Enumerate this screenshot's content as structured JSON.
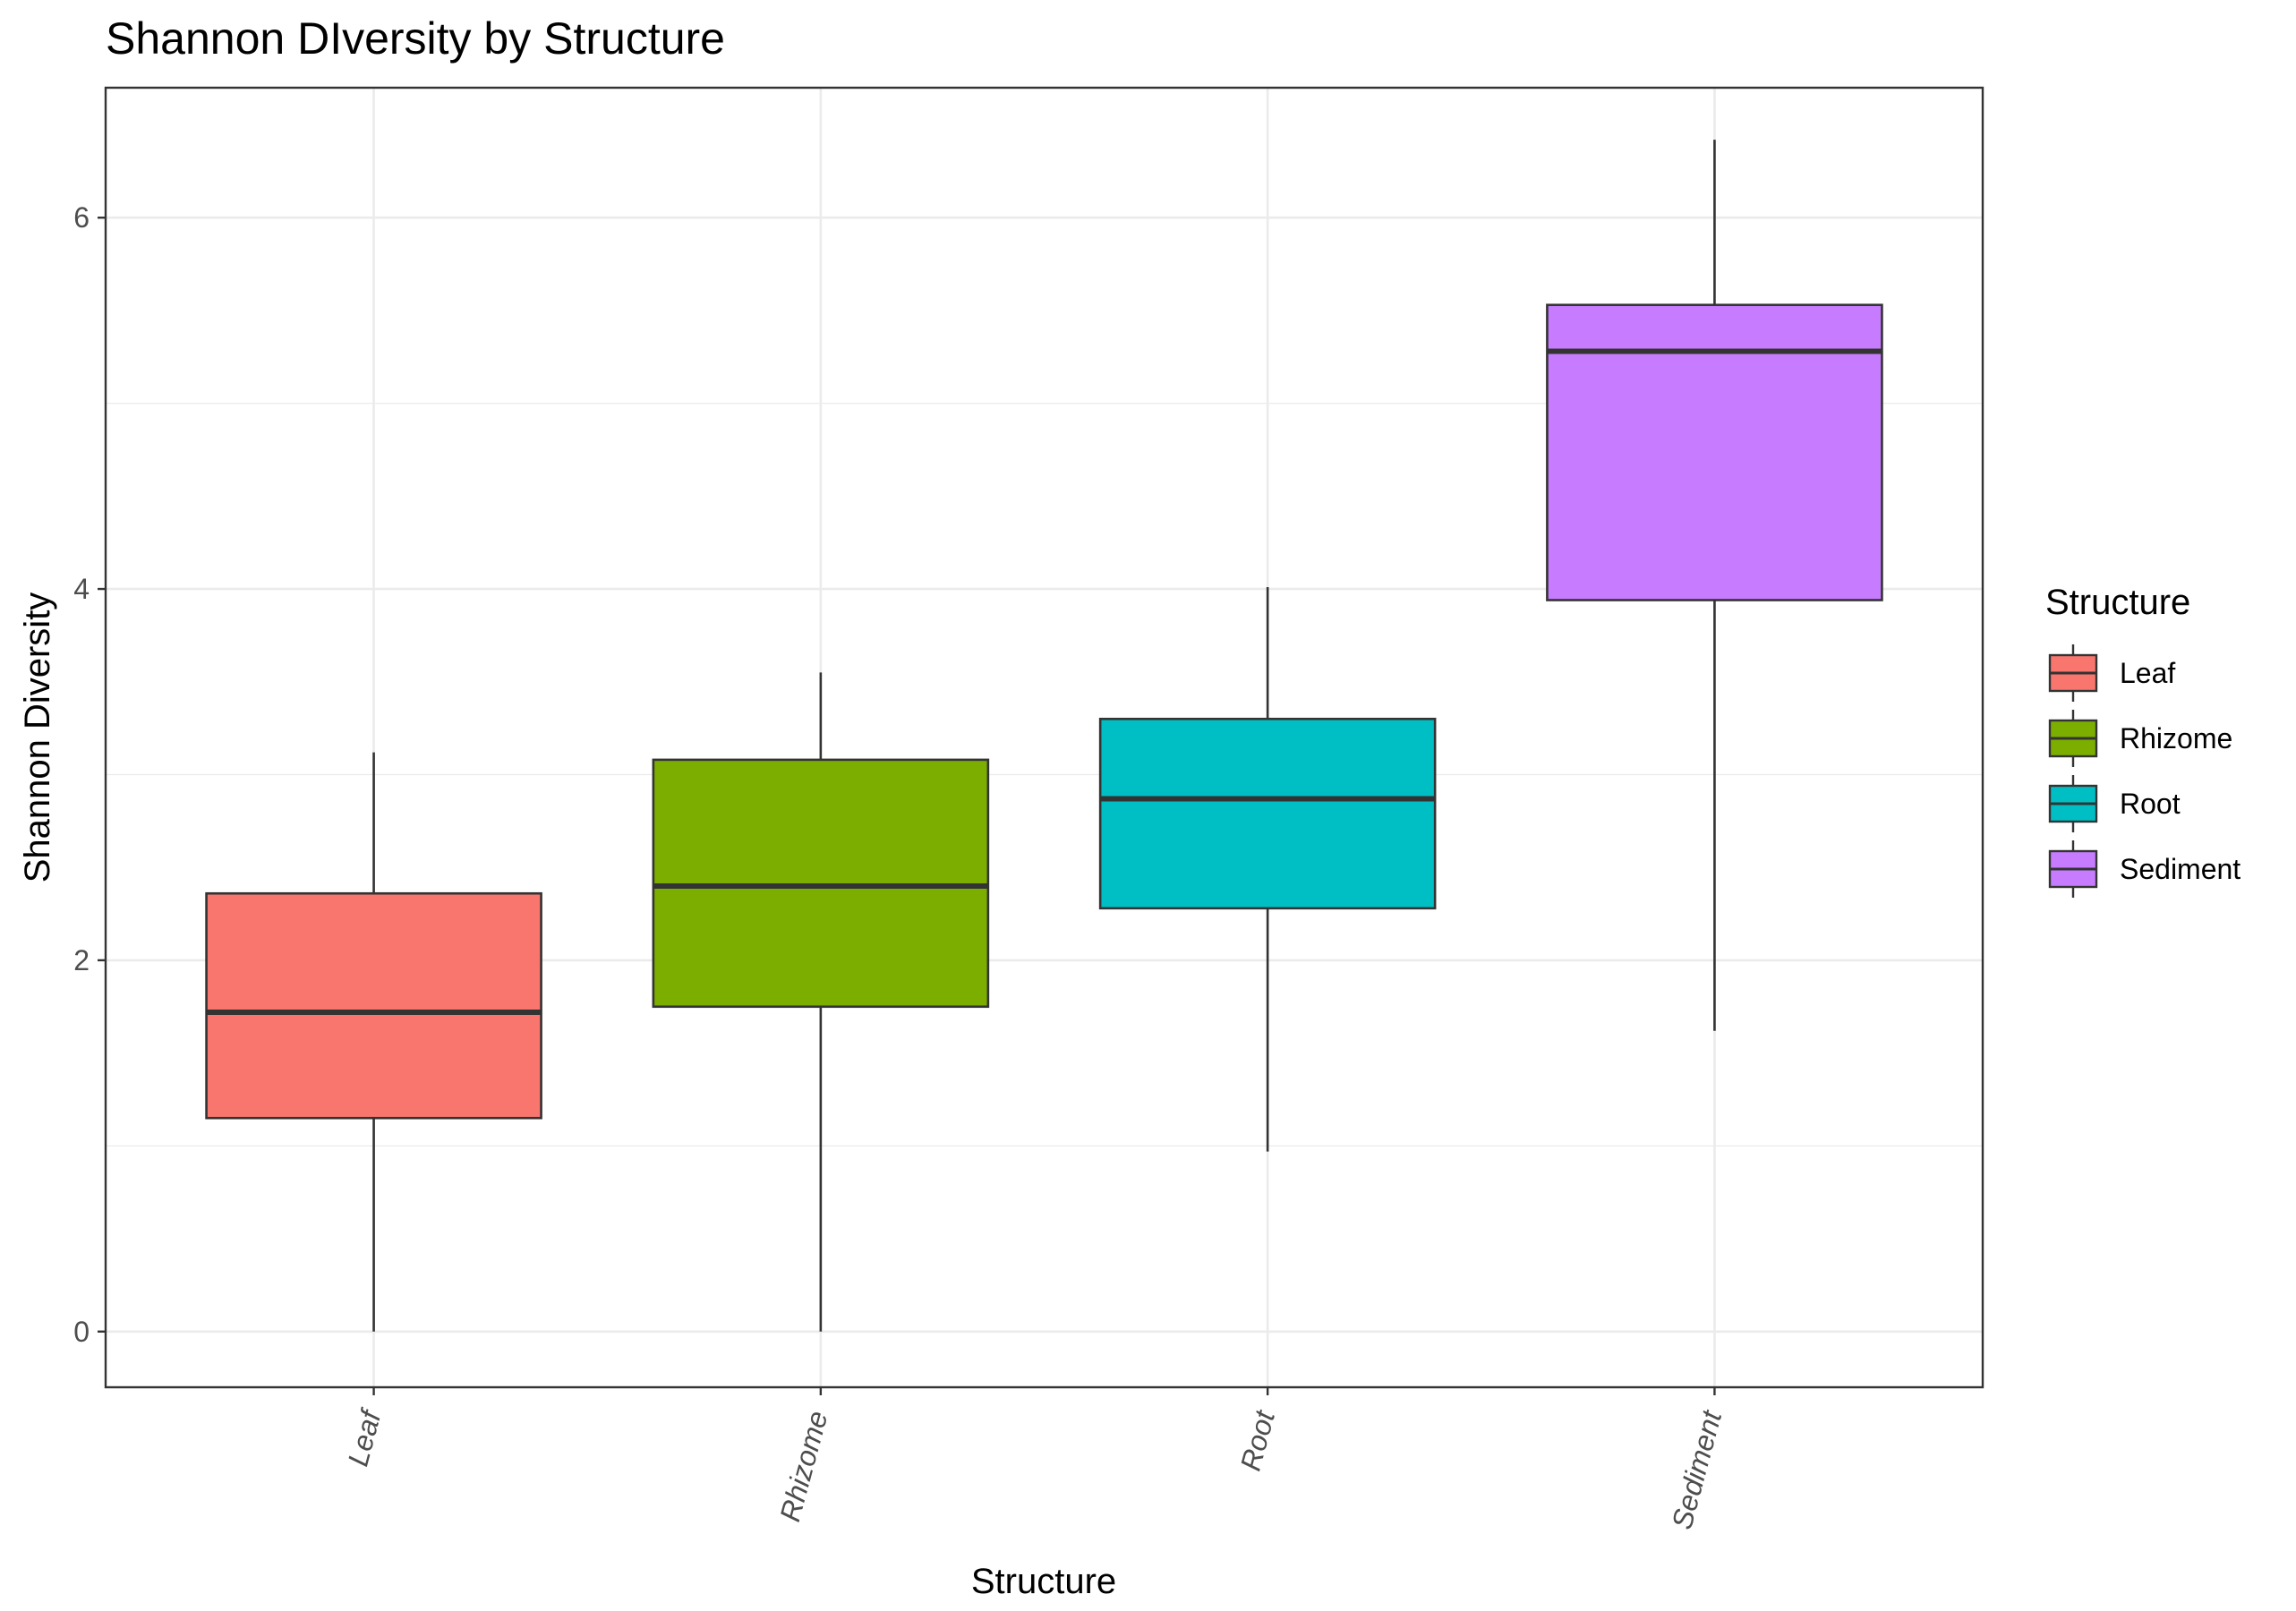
{
  "chart_data": {
    "type": "box",
    "title": "Shannon DIversity by Structure",
    "xlabel": "Structure",
    "ylabel": "Shannon Diversity",
    "ylim": [
      -0.3,
      6.7
    ],
    "yticks": [
      0,
      2,
      4,
      6
    ],
    "grid": true,
    "legend": {
      "title": "Structure",
      "position": "right"
    },
    "categories": [
      "Leaf",
      "Rhizome",
      "Root",
      "Sediment"
    ],
    "colors": [
      "#F8766D",
      "#7CAE00",
      "#00BFC4",
      "#C77CFF"
    ],
    "boxes": [
      {
        "category": "Leaf",
        "whisker_low": 0.0,
        "q1": 1.15,
        "median": 1.72,
        "q3": 2.36,
        "whisker_high": 3.12
      },
      {
        "category": "Rhizome",
        "whisker_low": 0.0,
        "q1": 1.75,
        "median": 2.4,
        "q3": 3.08,
        "whisker_high": 3.55
      },
      {
        "category": "Root",
        "whisker_low": 0.97,
        "q1": 2.28,
        "median": 2.87,
        "q3": 3.3,
        "whisker_high": 4.01
      },
      {
        "category": "Sediment",
        "whisker_low": 1.62,
        "q1": 3.94,
        "median": 5.28,
        "q3": 5.53,
        "whisker_high": 6.42
      }
    ]
  }
}
